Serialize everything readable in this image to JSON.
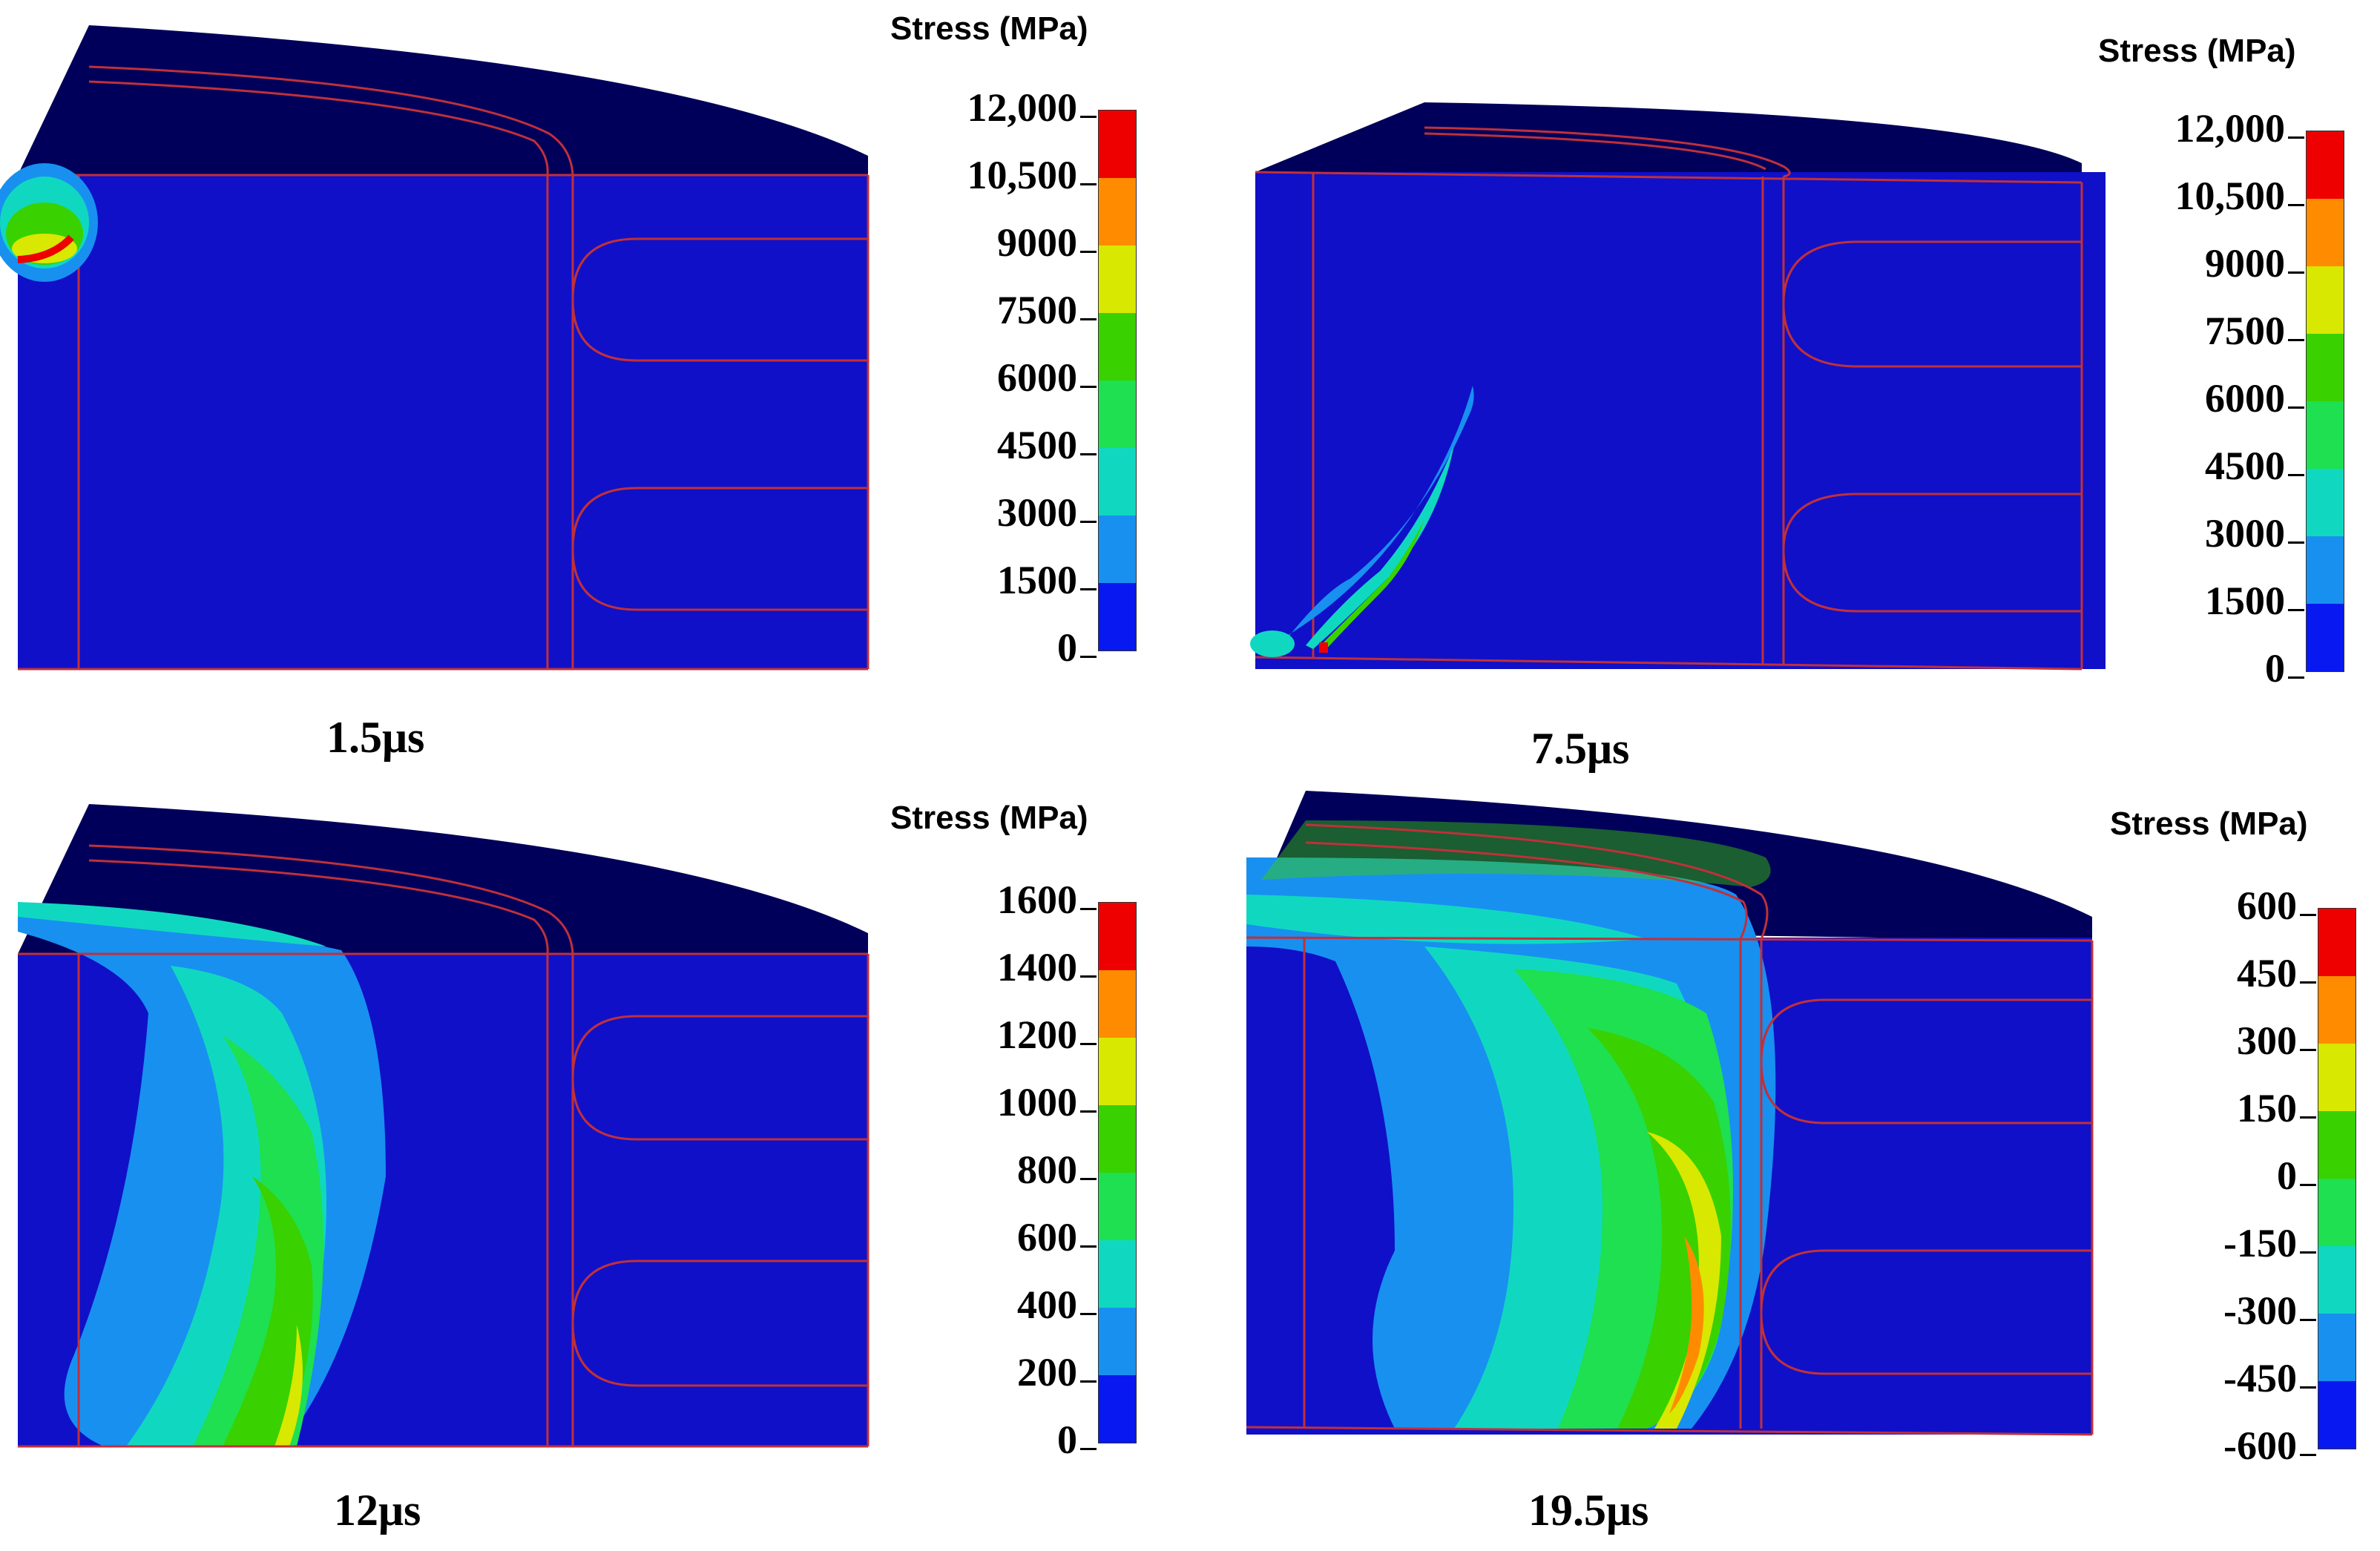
{
  "colors": {
    "top_face": "#00005a",
    "body": "#1010c8",
    "outline": "#c0303a",
    "scale_top_to_bottom": [
      "#ee0000",
      "#ff8c00",
      "#d8e800",
      "#39d100",
      "#1ee050",
      "#10d8c0",
      "#1890f0",
      "#0818f0"
    ]
  },
  "panels": [
    {
      "id": "p1",
      "time_label": "1.5μs",
      "legend_title": "Stress (MPa)",
      "legend_ticks": [
        "12,000",
        "10,500",
        "9000",
        "7500",
        "6000",
        "4500",
        "3000",
        "1500",
        "0"
      ],
      "stress_pattern": "small hotspot at upper-left corner"
    },
    {
      "id": "p2",
      "time_label": "7.5μs",
      "legend_title": "Stress (MPa)",
      "legend_ticks": [
        "12,000",
        "10,500",
        "9000",
        "7500",
        "6000",
        "4500",
        "3000",
        "1500",
        "0"
      ],
      "stress_pattern": "narrow diagonal streak rising from lower-left"
    },
    {
      "id": "p3",
      "time_label": "12μs",
      "legend_title": "Stress (MPa)",
      "legend_ticks": [
        "1600",
        "1400",
        "1200",
        "1000",
        "800",
        "600",
        "400",
        "200",
        "0"
      ],
      "stress_pattern": "curved band across left half"
    },
    {
      "id": "p4",
      "time_label": "19.5μs",
      "legend_title": "Stress (MPa)",
      "legend_ticks": [
        "600",
        "450",
        "300",
        "150",
        "0",
        "-150",
        "-300",
        "-450",
        "-600"
      ],
      "stress_pattern": "wide arc band with peak near right edge"
    }
  ]
}
